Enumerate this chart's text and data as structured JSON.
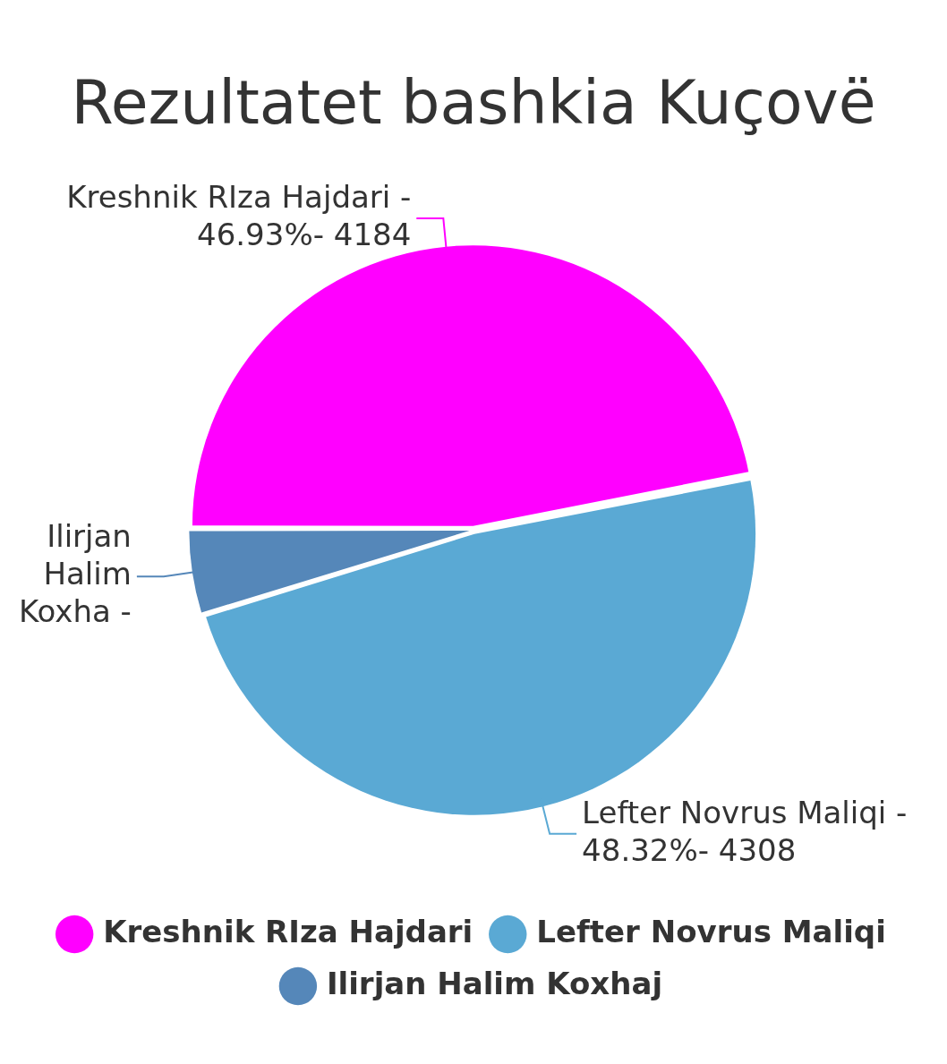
{
  "chart_data": {
    "type": "pie",
    "title": "Rezultatet bashkia Kuçovë",
    "categories": [
      "Kreshnik RIza Hajdari",
      "Lefter Novrus Maliqi",
      "Ilirjan Halim Koxhaj"
    ],
    "values": [
      46.93,
      48.32,
      4.75
    ],
    "colors": [
      "#ff00ff",
      "#5aa9d4",
      "#5587b9"
    ],
    "annotations": [
      "Kreshnik RIza Hajdari - 46.93%- 4184",
      "Lefter Novrus Maliqi - 48.32%- 4308",
      "Ilirjan Halim Koxha -"
    ],
    "legend": "bottom"
  }
}
